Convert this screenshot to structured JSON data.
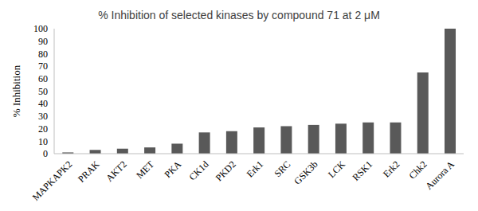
{
  "chart_data": {
    "type": "bar",
    "title": "% Inhibition of selected kinases by compound 71 at 2 μM",
    "y_label": "% Inhibition",
    "categories": [
      "MAPKAPK2",
      "PRAK",
      "AKT2",
      "MET",
      "PKA",
      "CK1d",
      "PKD2",
      "Erk1",
      "SRC",
      "GSK3b",
      "LCK",
      "RSK1",
      "Erk2",
      "Chk2",
      "Aurora A"
    ],
    "values": [
      1,
      3,
      4,
      5,
      8,
      17,
      18,
      21,
      22,
      23,
      24,
      25,
      25,
      65,
      100
    ],
    "color": "#595959",
    "ylim": [
      0,
      100
    ],
    "yticks": [
      0,
      10,
      20,
      30,
      40,
      50,
      60,
      70,
      80,
      90,
      100
    ],
    "grid": false
  }
}
